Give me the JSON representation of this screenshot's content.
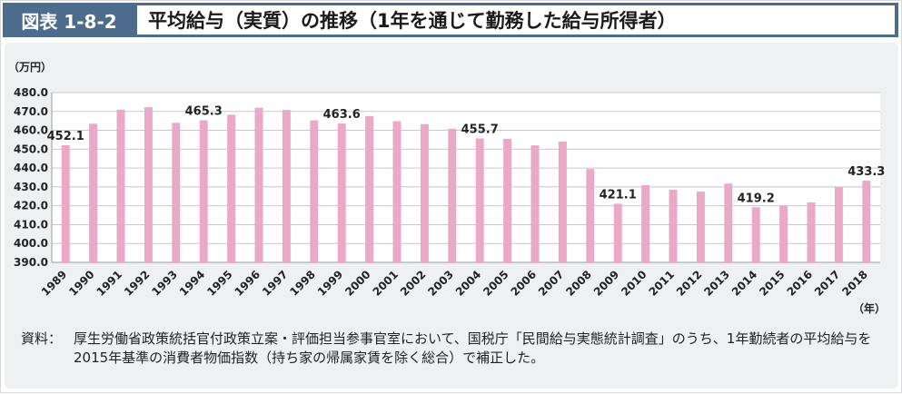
{
  "header": {
    "badge": "図表 1-8-2",
    "title": "平均給与（実質）の推移（1年を通じて勤務した給与所得者）"
  },
  "chart_data": {
    "type": "bar",
    "ylabel": "（万円）",
    "xlabel": "（年）",
    "ylim": [
      390,
      480
    ],
    "yticks": [
      "390.0",
      "400.0",
      "410.0",
      "420.0",
      "430.0",
      "440.0",
      "450.0",
      "460.0",
      "470.0",
      "480.0"
    ],
    "grid": true,
    "bar_color": "#eba9c8",
    "categories": [
      "1989",
      "1990",
      "1991",
      "1992",
      "1993",
      "1994",
      "1995",
      "1996",
      "1997",
      "1998",
      "1999",
      "2000",
      "2001",
      "2002",
      "2003",
      "2004",
      "2005",
      "2006",
      "2007",
      "2008",
      "2009",
      "2010",
      "2011",
      "2012",
      "2013",
      "2014",
      "2015",
      "2016",
      "2017",
      "2018"
    ],
    "values": [
      452.1,
      463.5,
      471.0,
      472.2,
      464.0,
      465.3,
      468.3,
      472.0,
      470.8,
      465.3,
      463.6,
      467.6,
      464.8,
      463.3,
      460.8,
      455.7,
      455.5,
      452.0,
      454.0,
      439.5,
      421.1,
      430.9,
      428.5,
      427.5,
      431.8,
      419.2,
      420.0,
      421.8,
      429.8,
      433.3
    ],
    "data_labels": [
      {
        "index": 0,
        "text": "452.1"
      },
      {
        "index": 5,
        "text": "465.3"
      },
      {
        "index": 10,
        "text": "463.6"
      },
      {
        "index": 15,
        "text": "455.7"
      },
      {
        "index": 20,
        "text": "421.1"
      },
      {
        "index": 25,
        "text": "419.2"
      },
      {
        "index": 29,
        "text": "433.3"
      }
    ]
  },
  "note": {
    "label": "資料：",
    "text": "厚生労働省政策統括官付政策立案・評価担当参事官室において、国税庁「民間給与実態統計調査」のうち、1年勤続者の平均給与を2015年基準の消費者物価指数（持ち家の帰属家賃を除く総合）で補正した。"
  }
}
